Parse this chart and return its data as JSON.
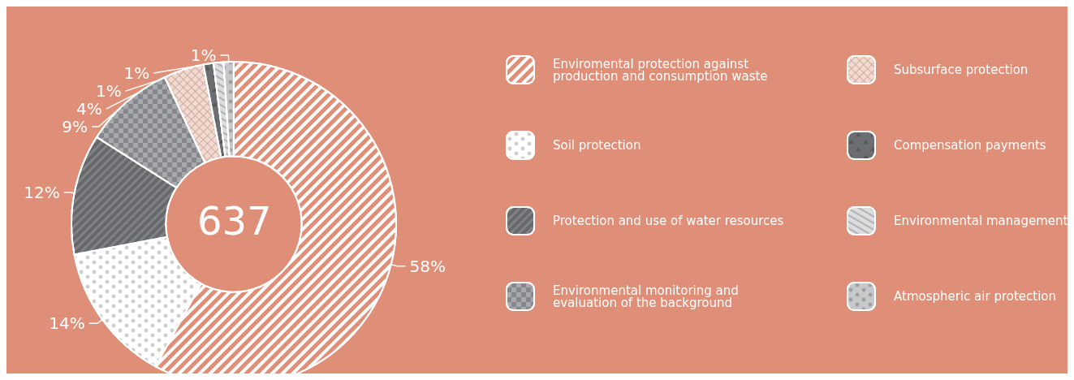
{
  "chart_data": {
    "type": "donut",
    "categories": [
      "Enviromental protection against production and consumption waste",
      "Soil protection",
      "Protection and use of water resources",
      "Environmental monitoring and evaluation of the background",
      "Subsurface protection",
      "Compensation payments",
      "Environmental management",
      "Atmospheric air protection"
    ],
    "values": [
      58,
      14,
      12,
      9,
      4,
      1,
      1,
      1
    ],
    "value_labels": [
      "58%",
      "14%",
      "12%",
      "9%",
      "4%",
      "1%",
      "1%",
      "1%"
    ],
    "colors": [
      "#df8f77",
      "#ffffff",
      "#818285",
      "#a7a9ac",
      "#f5d9cf",
      "#6d6e71",
      "#dcdddf",
      "#c6c8ca"
    ],
    "annotations": [
      "637"
    ],
    "legend": "right"
  }
}
